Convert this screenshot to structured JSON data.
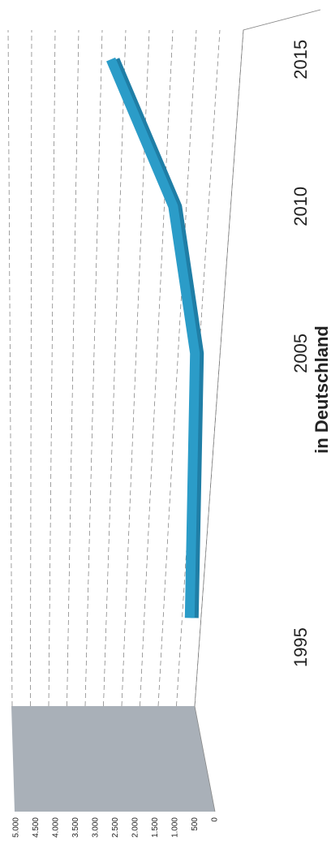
{
  "chart_data": {
    "type": "line",
    "title": "in Deutschland",
    "x": [
      1996,
      2005,
      2010,
      2015
    ],
    "xlim": [
      1993,
      2016
    ],
    "xticks": [
      1995,
      2005,
      2010,
      2015
    ],
    "series": [
      {
        "color": "#2b9cc8",
        "values": [
          300,
          600,
          1300,
          2800
        ]
      }
    ],
    "ylim": [
      0,
      5000
    ],
    "yticks": [
      0,
      500,
      {
        "value": 1000,
        "label": "1.000"
      },
      {
        "value": 1500,
        "label": "1.500"
      },
      {
        "value": 2000,
        "label": "2.000"
      },
      {
        "value": 2500,
        "label": "2.500"
      },
      {
        "value": 3000,
        "label": "3.000"
      },
      {
        "value": 3500,
        "label": "3.500"
      },
      {
        "value": 4000,
        "label": "4.000"
      },
      {
        "value": 4500,
        "label": "4.500"
      },
      {
        "value": 5000,
        "label": "5.000"
      }
    ],
    "grid": true
  }
}
